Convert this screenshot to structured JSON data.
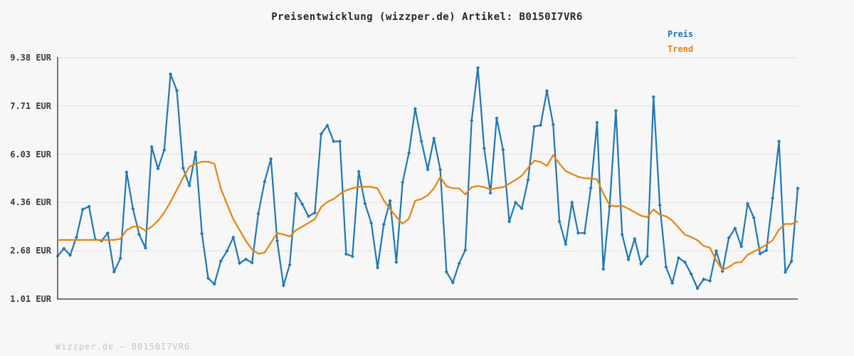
{
  "title": "Preisentwicklung (wizzper.de) Artikel: B0150I7VR6",
  "legend": {
    "items": [
      {
        "label": "Preis",
        "color": "#1f77b4"
      },
      {
        "label": "Trend",
        "color": "#e8820e"
      }
    ]
  },
  "footer": "Wizzper.de – B0150I7VR6",
  "colors": {
    "background": "#f7f7f7",
    "gridline": "#e2e2e2",
    "axis": "#767676",
    "title": "#262626",
    "tick_labels": "#3a3a3a",
    "footer": "#c6c6c6"
  },
  "chart_data": {
    "type": "line",
    "title": "Preisentwicklung (wizzper.de) Artikel: B0150I7VR6",
    "xlabel": "",
    "ylabel": "EUR",
    "x_tick_labels": [],
    "ylim": [
      1.01,
      9.38
    ],
    "y_ticks": [
      {
        "value": 9.38,
        "label": "9.38 EUR"
      },
      {
        "value": 7.71,
        "label": "7.71 EUR"
      },
      {
        "value": 6.03,
        "label": "6.03 EUR"
      },
      {
        "value": 4.36,
        "label": "4.36 EUR"
      },
      {
        "value": 2.68,
        "label": "2.68 EUR"
      },
      {
        "value": 1.01,
        "label": "1.01 EUR"
      }
    ],
    "grid": "horizontal",
    "legend_position": "top-right",
    "series": [
      {
        "name": "Preis",
        "color": "#1f77b4",
        "markers": true,
        "values": [
          2.5,
          2.76,
          2.53,
          3.15,
          4.12,
          4.22,
          3.08,
          3.03,
          3.3,
          1.95,
          2.42,
          5.41,
          4.14,
          3.25,
          2.78,
          6.29,
          5.53,
          6.18,
          8.81,
          8.24,
          5.55,
          4.94,
          6.1,
          3.28,
          1.73,
          1.53,
          2.32,
          2.68,
          3.15,
          2.25,
          2.39,
          2.27,
          3.97,
          5.08,
          5.87,
          3.03,
          1.48,
          2.2,
          4.67,
          4.3,
          3.88,
          4.0,
          6.73,
          7.03,
          6.48,
          6.48,
          2.57,
          2.49,
          5.43,
          4.32,
          3.65,
          2.1,
          3.6,
          4.42,
          2.29,
          5.06,
          6.08,
          7.61,
          6.48,
          5.5,
          6.58,
          5.5,
          1.95,
          1.58,
          2.24,
          2.71,
          7.2,
          9.03,
          6.24,
          4.69,
          7.28,
          6.19,
          3.7,
          4.36,
          4.15,
          5.14,
          6.99,
          7.04,
          8.23,
          7.06,
          3.7,
          2.91,
          4.36,
          3.3,
          3.3,
          4.86,
          7.13,
          2.05,
          4.22,
          7.54,
          3.25,
          2.38,
          3.1,
          2.23,
          2.5,
          8.02,
          4.27,
          2.12,
          1.56,
          2.44,
          2.29,
          1.88,
          1.38,
          1.7,
          1.64,
          2.68,
          1.97,
          3.13,
          3.46,
          2.83,
          4.32,
          3.83,
          2.58,
          2.7,
          4.51,
          6.48,
          1.94,
          2.32,
          4.85
        ]
      },
      {
        "name": "Trend",
        "color": "#e8820e",
        "markers": false,
        "values": [
          3.06,
          3.06,
          3.06,
          3.06,
          3.06,
          3.06,
          3.06,
          3.06,
          3.06,
          3.06,
          3.1,
          3.4,
          3.52,
          3.52,
          3.38,
          3.52,
          3.72,
          4.01,
          4.38,
          4.8,
          5.22,
          5.6,
          5.7,
          5.77,
          5.77,
          5.7,
          4.85,
          4.3,
          3.78,
          3.4,
          3.03,
          2.73,
          2.58,
          2.62,
          2.96,
          3.3,
          3.25,
          3.18,
          3.4,
          3.52,
          3.65,
          3.78,
          4.2,
          4.38,
          4.48,
          4.65,
          4.78,
          4.85,
          4.9,
          4.9,
          4.9,
          4.85,
          4.43,
          4.13,
          3.86,
          3.62,
          3.8,
          4.42,
          4.48,
          4.61,
          4.85,
          5.24,
          4.92,
          4.85,
          4.85,
          4.64,
          4.89,
          4.93,
          4.89,
          4.81,
          4.86,
          4.89,
          5.01,
          5.14,
          5.29,
          5.56,
          5.81,
          5.76,
          5.63,
          6.0,
          5.7,
          5.45,
          5.35,
          5.25,
          5.2,
          5.19,
          5.16,
          4.67,
          4.27,
          4.22,
          4.25,
          4.14,
          4.02,
          3.9,
          3.85,
          4.12,
          3.93,
          3.88,
          3.73,
          3.49,
          3.24,
          3.16,
          3.05,
          2.85,
          2.79,
          2.35,
          2.02,
          2.12,
          2.27,
          2.29,
          2.54,
          2.66,
          2.76,
          2.9,
          3.05,
          3.42,
          3.62,
          3.61,
          3.7
        ]
      }
    ]
  }
}
